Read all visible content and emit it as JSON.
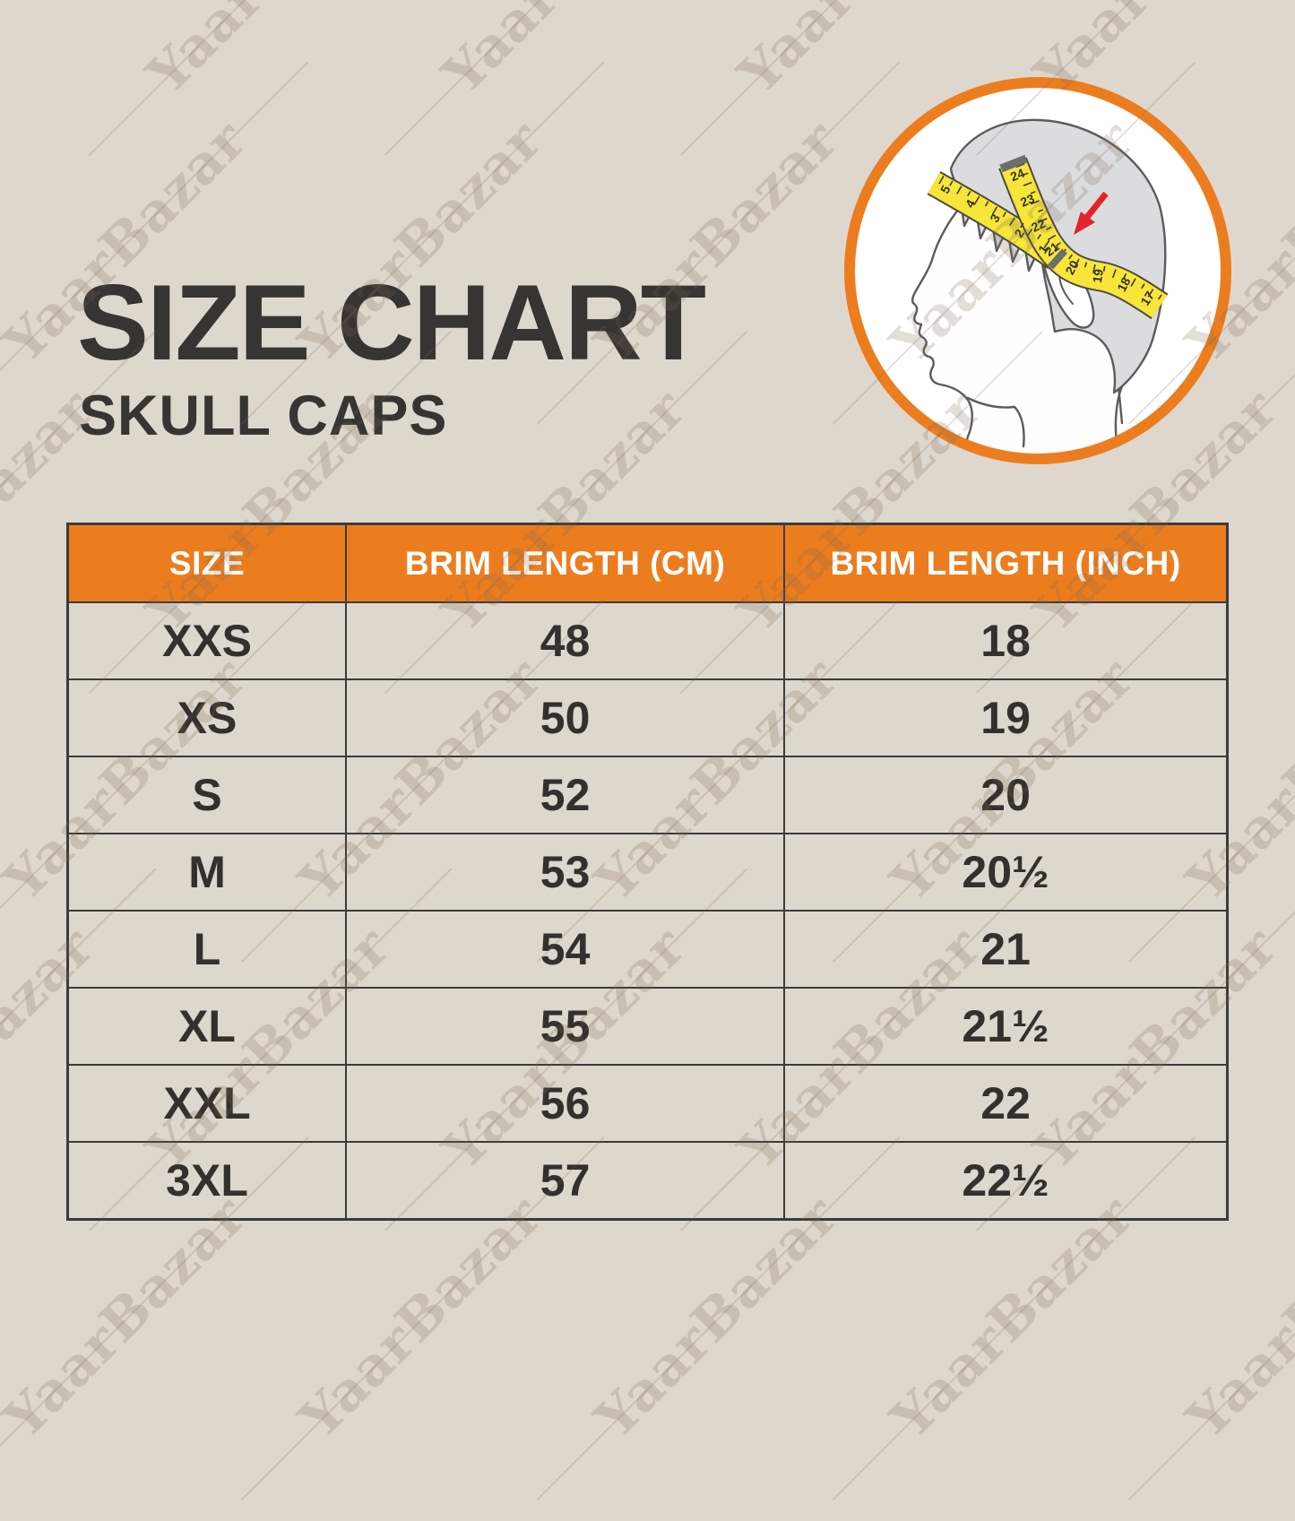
{
  "page": {
    "background_color": "#ded7ce"
  },
  "watermark": {
    "text": "YaarBazar"
  },
  "title": {
    "main": "SIZE CHART",
    "subtitle": "SKULL CAPS"
  },
  "illustration": {
    "name": "head-measurement-diagram",
    "ring_color": "#ec7d1f",
    "tape_color": "#f7e53a",
    "arrow_color": "#e2242b",
    "tape_front_numbers": [
      "5",
      "4",
      "3",
      "2",
      "1"
    ],
    "tape_back_numbers": [
      "24",
      "23",
      "22",
      "21",
      "20",
      "19",
      "18",
      "17"
    ]
  },
  "table": {
    "header_bg": "#ec7d1f",
    "headers": [
      "SIZE",
      "BRIM LENGTH (CM)",
      "BRIM LENGTH (INCH)"
    ],
    "rows": [
      [
        "XXS",
        "48",
        "18"
      ],
      [
        "XS",
        "50",
        "19"
      ],
      [
        "S",
        "52",
        "20"
      ],
      [
        "M",
        "53",
        "20½"
      ],
      [
        "L",
        "54",
        "21"
      ],
      [
        "XL",
        "55",
        "21½"
      ],
      [
        "XXL",
        "56",
        "22"
      ],
      [
        "3XL",
        "57",
        "22½"
      ]
    ]
  }
}
